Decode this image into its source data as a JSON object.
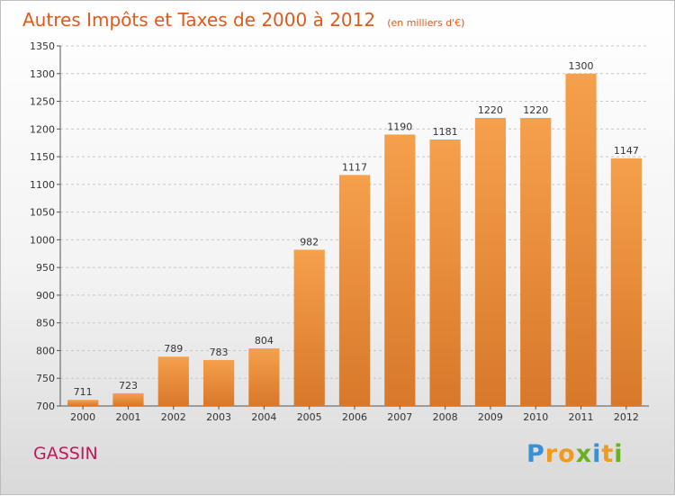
{
  "chart_data": {
    "type": "bar",
    "title": "Autres Impôts et Taxes de 2000 à 2012",
    "subtitle": "(en milliers d'€)",
    "categories": [
      "2000",
      "2001",
      "2002",
      "2003",
      "2004",
      "2005",
      "2006",
      "2007",
      "2008",
      "2009",
      "2010",
      "2011",
      "2012"
    ],
    "values": [
      711,
      723,
      789,
      783,
      804,
      982,
      1117,
      1190,
      1181,
      1220,
      1220,
      1300,
      1147
    ],
    "value_labels": [
      "711",
      "723",
      "789",
      "783",
      "804",
      "982",
      "1117",
      "1190",
      "1181",
      "1220",
      "1220",
      "1300",
      "1147"
    ],
    "ylim": [
      700,
      1350
    ],
    "yticks": [
      700,
      750,
      800,
      850,
      900,
      950,
      1000,
      1050,
      1100,
      1150,
      1200,
      1250,
      1300,
      1350
    ],
    "grid": true,
    "bar_color": "#f5a04c",
    "bar_color_dark": "#d8782a"
  },
  "commune": "GASSIN",
  "brand": {
    "letters": [
      "P",
      "r",
      "o",
      "x",
      "i",
      "t",
      "i"
    ],
    "colors": [
      "#3a8fd6",
      "#f29a1f",
      "#f29a1f",
      "#6ab023",
      "#3a8fd6",
      "#f29a1f",
      "#6ab023"
    ]
  }
}
